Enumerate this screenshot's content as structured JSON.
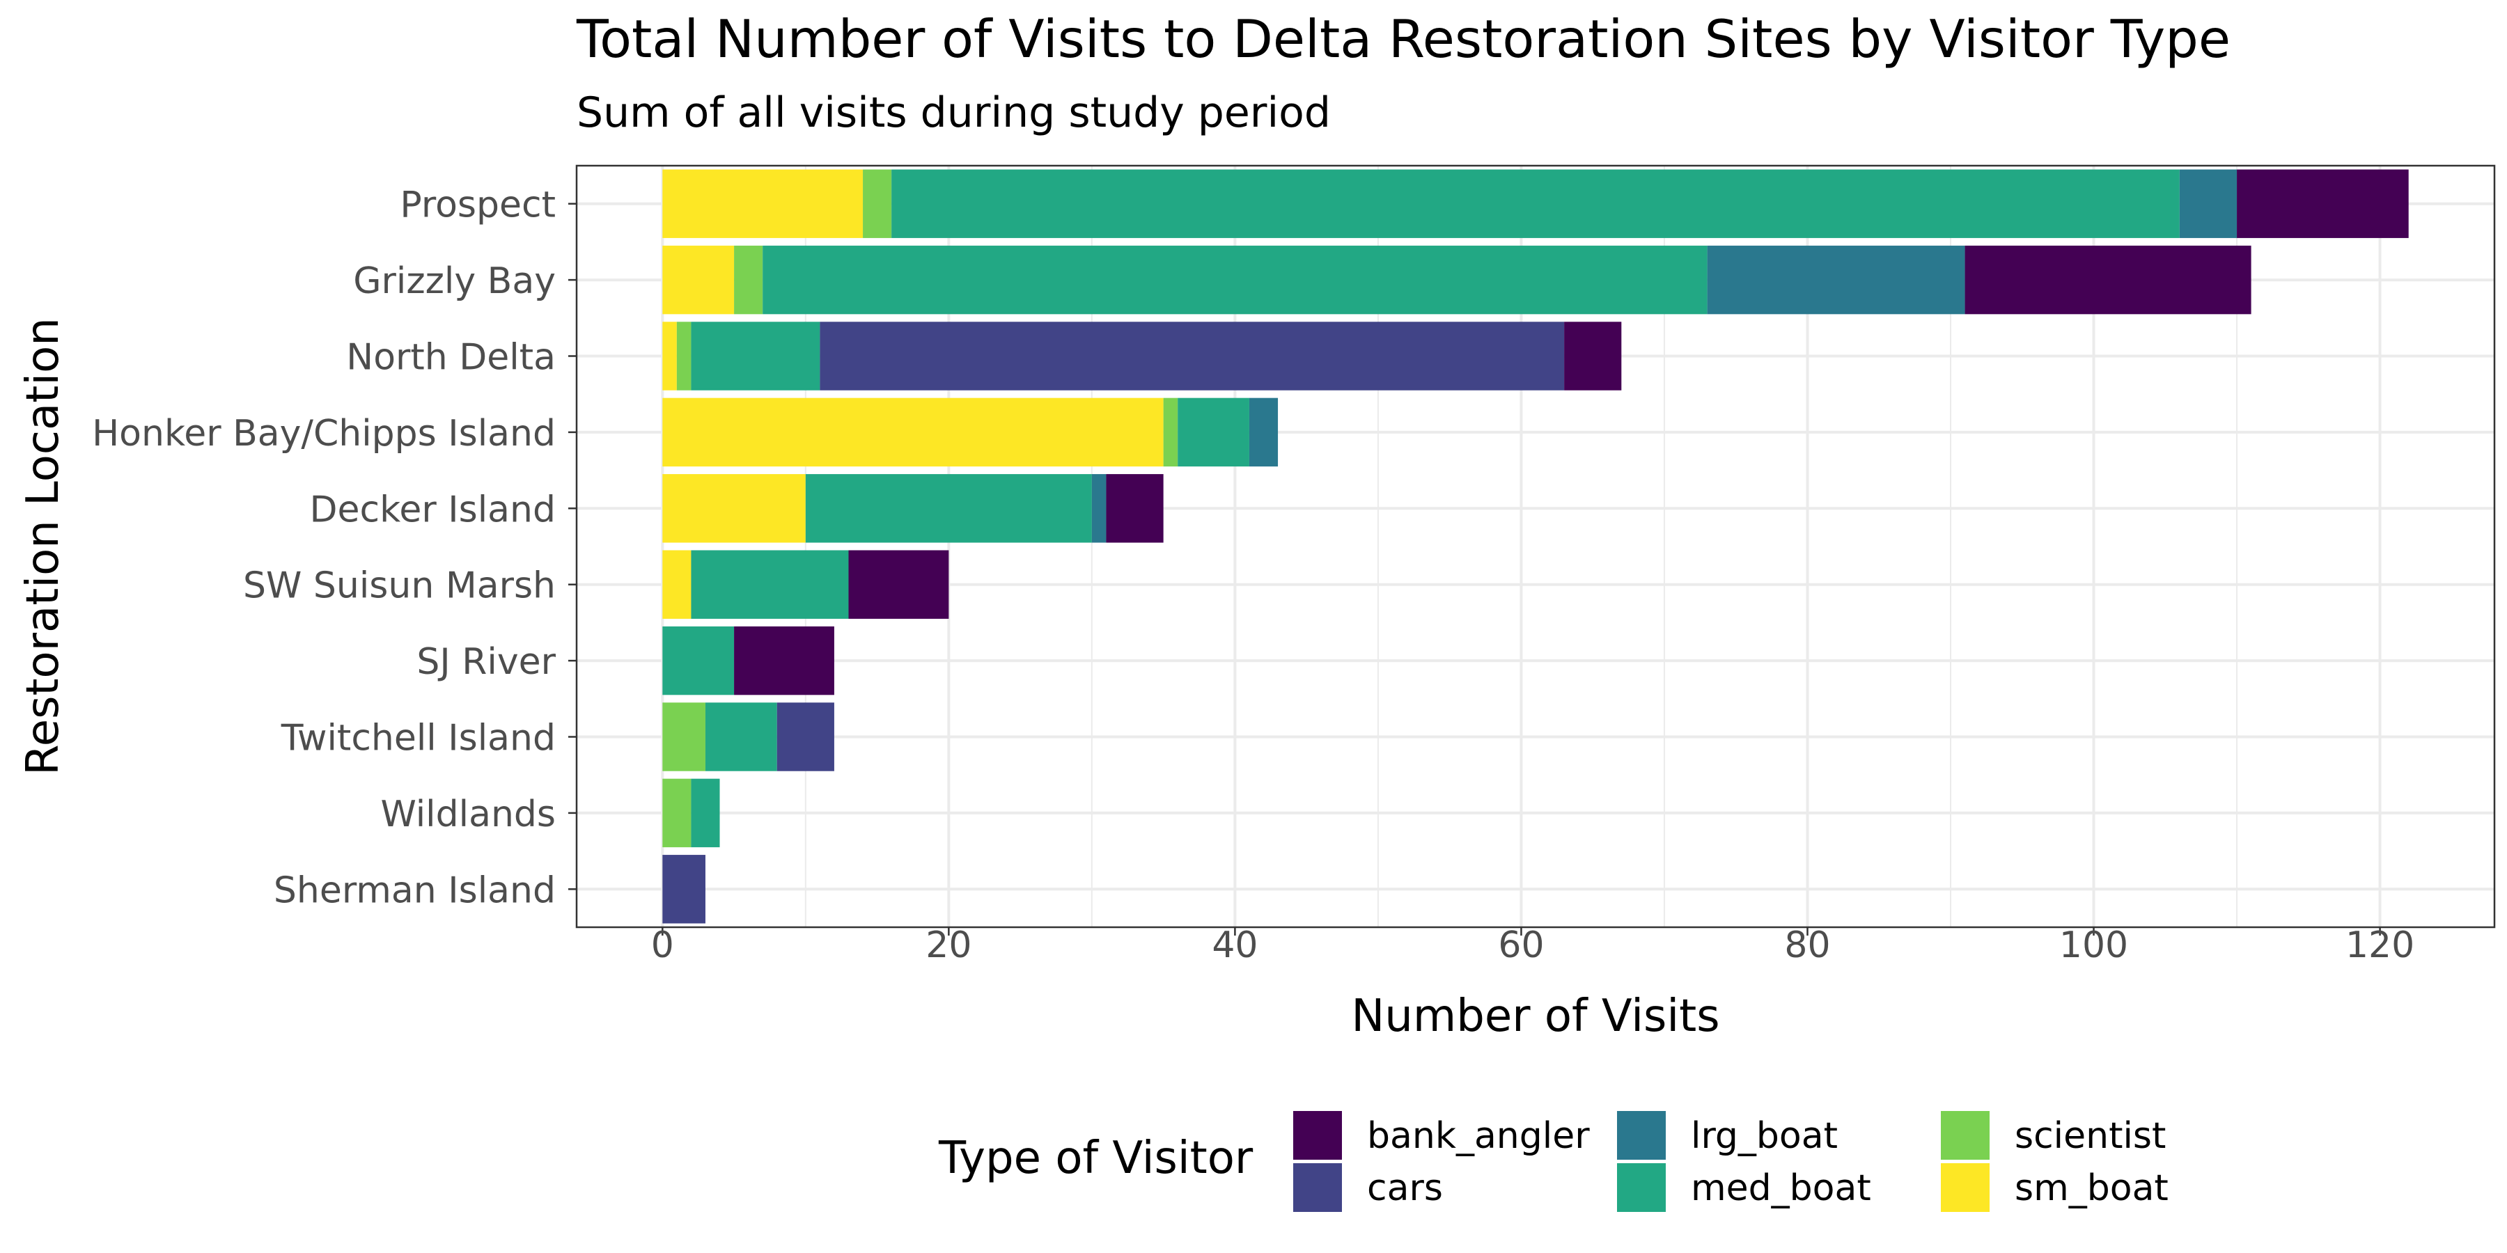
{
  "chart_data": {
    "type": "bar",
    "orientation": "horizontal",
    "stacked": true,
    "title": "Total Number of Visits to Delta Restoration Sites by Visitor Type",
    "subtitle": "Sum of all visits during study period",
    "xlabel": "Number of Visits",
    "ylabel": "Restoration Location",
    "xlim": [
      -6,
      128
    ],
    "x_ticks": [
      0,
      20,
      40,
      60,
      80,
      100,
      120
    ],
    "grid": true,
    "legend_title": "Type of Visitor",
    "legend_position": "bottom",
    "categories": [
      "Sherman Island",
      "Wildlands",
      "Twitchell Island",
      "SJ River",
      "SW Suisun Marsh",
      "Decker Island",
      "Honker Bay/Chipps Island",
      "North Delta",
      "Grizzly Bay",
      "Prospect"
    ],
    "stack_order": [
      "sm_boat",
      "scientist",
      "med_boat",
      "lrg_boat",
      "cars",
      "bank_angler"
    ],
    "series": [
      {
        "name": "bank_angler",
        "color": "#440154",
        "values": [
          0,
          0,
          0,
          7,
          7,
          4,
          0,
          4,
          20,
          12
        ]
      },
      {
        "name": "cars",
        "color": "#414487",
        "values": [
          3,
          0,
          4,
          0,
          0,
          0,
          0,
          52,
          0,
          0
        ]
      },
      {
        "name": "lrg_boat",
        "color": "#2A788E",
        "values": [
          0,
          0,
          0,
          0,
          0,
          1,
          2,
          0,
          18,
          4
        ]
      },
      {
        "name": "med_boat",
        "color": "#22A884",
        "values": [
          0,
          2,
          5,
          5,
          11,
          20,
          5,
          9,
          66,
          90
        ]
      },
      {
        "name": "scientist",
        "color": "#7AD151",
        "values": [
          0,
          2,
          3,
          0,
          0,
          0,
          1,
          1,
          2,
          2
        ]
      },
      {
        "name": "sm_boat",
        "color": "#FDE725",
        "values": [
          0,
          0,
          0,
          0,
          2,
          10,
          35,
          1,
          5,
          14
        ]
      }
    ]
  }
}
